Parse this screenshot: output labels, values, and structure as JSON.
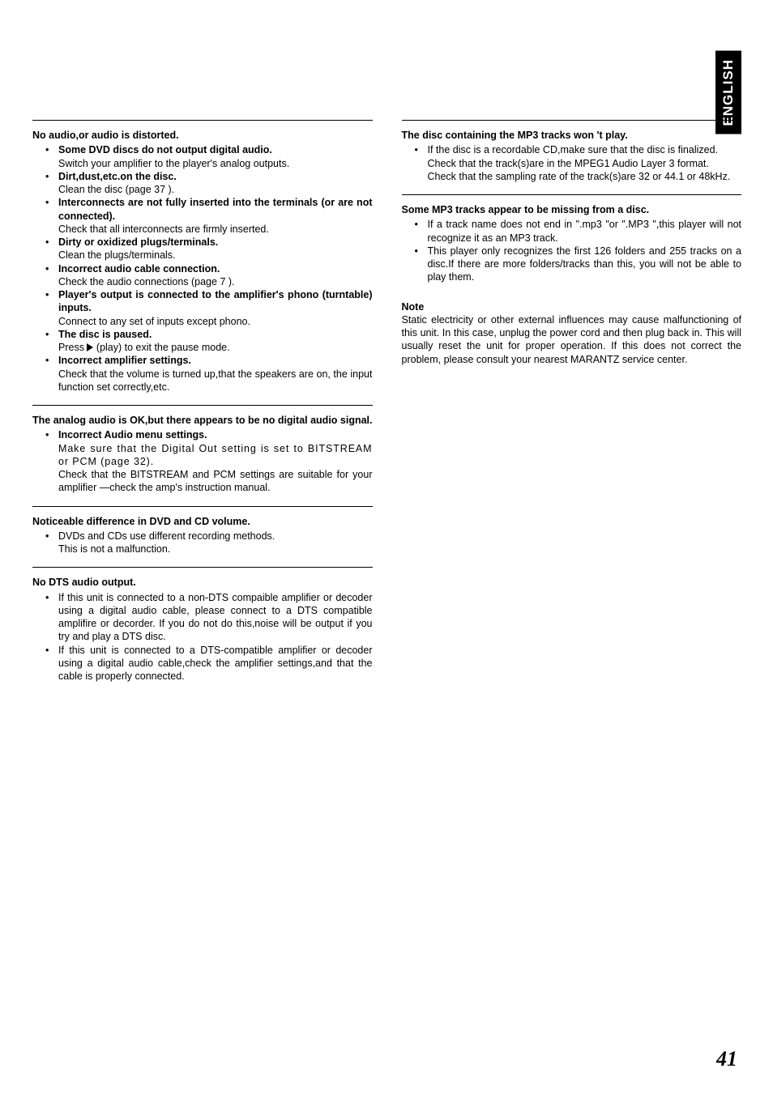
{
  "language_tab": "ENGLISH",
  "page_number": "41",
  "left": {
    "s1": {
      "title": "No audio,or audio is distorted.",
      "i1b": "Some DVD discs do not output digital audio.",
      "i1t": "Switch your amplifier to the player's analog outputs.",
      "i2b": "Dirt,dust,etc.on the disc.",
      "i2t": "Clean the disc (page 37 ).",
      "i3b": "Interconnects are not fully inserted into the terminals (or are not connected).",
      "i3t": "Check that all interconnects are firmly inserted.",
      "i4b": "Dirty or oxidized plugs/terminals.",
      "i4t": "Clean the plugs/terminals.",
      "i5b": "Incorrect audio cable connection.",
      "i5t": "Check the audio connections (page 7 ).",
      "i6b": "Player's output is connected to the amplifier's phono (turntable) inputs.",
      "i6t": "Connect to any set of inputs except phono.",
      "i7b": "The disc is paused.",
      "i7t1": "Press ",
      "i7t2": " (play) to exit the pause mode.",
      "i8b": "Incorrect amplifier settings.",
      "i8t": "Check that the volume is turned up,that the speakers are on, the input function set correctly,etc."
    },
    "s2": {
      "title": "The analog audio is OK,but there appears to be no digital audio signal.",
      "i1b": "Incorrect Audio menu settings.",
      "i1t1": "Make sure that the Digital Out setting is set to BITSTREAM or PCM (page 32).",
      "i1t2": "Check that the BITSTREAM and PCM settings are suitable for your amplifier —check the amp's instruction manual."
    },
    "s3": {
      "title": "Noticeable difference in DVD and CD volume.",
      "i1t1": "DVDs and CDs use different recording methods.",
      "i1t2": "This is not a malfunction."
    },
    "s4": {
      "title": "No DTS audio output.",
      "i1": "If this unit is connected to a non-DTS compaible amplifier or decoder using a digital audio cable, please connect to a DTS compatible amplifire or decorder. If you do not do this,noise will be output if you try and play a DTS disc.",
      "i2": "If this unit is connected to a DTS-compatible amplifier or decoder using a digital audio cable,check the amplifier settings,and that the cable is properly connected."
    }
  },
  "right": {
    "s1": {
      "title": "The disc containing the MP3 tracks won 't play.",
      "i1t1": "If the disc is a recordable CD,make sure that the disc is finalized.",
      "i1t2": "Check that the track(s)are in the MPEG1 Audio Layer 3 format.",
      "i1t3": "Check that the sampling rate of the track(s)are 32 or 44.1 or 48kHz."
    },
    "s2": {
      "title": "Some MP3 tracks appear to be missing from a disc.",
      "i1": "If a track name does not end in \".mp3 \"or \".MP3 \",this player will not recognize it as an MP3 track.",
      "i2": "This player only recognizes the first 126 folders and 255 tracks on a disc.If there are more folders/tracks than this, you will not be able to play them."
    },
    "note_title": "Note",
    "note_body": "Static electricity or other external influences may cause malfunctioning of this unit. In this case, unplug the power cord and then plug back in. This will usually reset the unit for proper operation. If this does not correct the problem, please consult your nearest MARANTZ service center."
  }
}
